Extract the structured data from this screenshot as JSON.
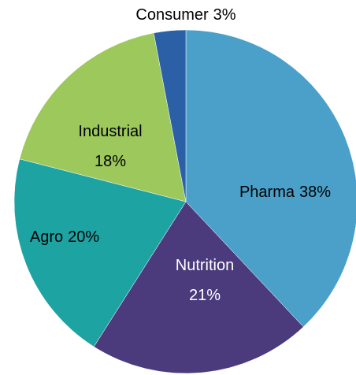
{
  "chart_data": {
    "type": "pie",
    "categories": [
      "Pharma",
      "Nutrition",
      "Agro",
      "Industrial",
      "Consumer"
    ],
    "values": [
      38,
      21,
      20,
      18,
      3
    ],
    "value_labels": [
      "38%",
      "21%",
      "20%",
      "18%",
      "3%"
    ],
    "colors": [
      "#4aa0c9",
      "#4b3b7d",
      "#1ea3a3",
      "#9dc85c",
      "#2b5fa6"
    ]
  }
}
